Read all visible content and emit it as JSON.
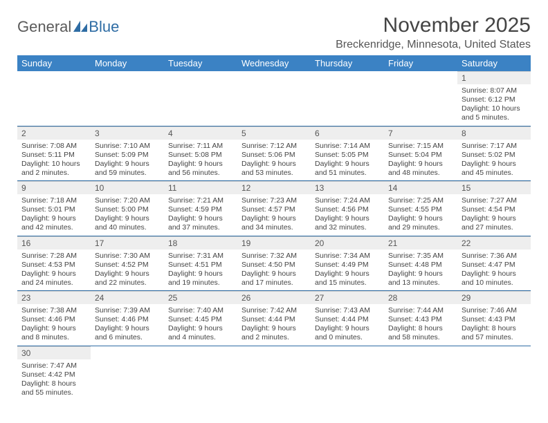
{
  "logo": {
    "word1": "General",
    "word2": "Blue"
  },
  "title": "November 2025",
  "location": "Breckenridge, Minnesota, United States",
  "colors": {
    "header_bg": "#3b82c4",
    "header_text": "#ffffff",
    "daynum_bg": "#eeeeee",
    "row_border": "#2e6ca4",
    "text": "#444444",
    "logo_gray": "#5a5a5a",
    "logo_blue": "#2e6ca4"
  },
  "weekdays": [
    "Sunday",
    "Monday",
    "Tuesday",
    "Wednesday",
    "Thursday",
    "Friday",
    "Saturday"
  ],
  "weeks": [
    [
      null,
      null,
      null,
      null,
      null,
      null,
      {
        "n": "1",
        "sr": "Sunrise: 8:07 AM",
        "ss": "Sunset: 6:12 PM",
        "d1": "Daylight: 10 hours",
        "d2": "and 5 minutes."
      }
    ],
    [
      {
        "n": "2",
        "sr": "Sunrise: 7:08 AM",
        "ss": "Sunset: 5:11 PM",
        "d1": "Daylight: 10 hours",
        "d2": "and 2 minutes."
      },
      {
        "n": "3",
        "sr": "Sunrise: 7:10 AM",
        "ss": "Sunset: 5:09 PM",
        "d1": "Daylight: 9 hours",
        "d2": "and 59 minutes."
      },
      {
        "n": "4",
        "sr": "Sunrise: 7:11 AM",
        "ss": "Sunset: 5:08 PM",
        "d1": "Daylight: 9 hours",
        "d2": "and 56 minutes."
      },
      {
        "n": "5",
        "sr": "Sunrise: 7:12 AM",
        "ss": "Sunset: 5:06 PM",
        "d1": "Daylight: 9 hours",
        "d2": "and 53 minutes."
      },
      {
        "n": "6",
        "sr": "Sunrise: 7:14 AM",
        "ss": "Sunset: 5:05 PM",
        "d1": "Daylight: 9 hours",
        "d2": "and 51 minutes."
      },
      {
        "n": "7",
        "sr": "Sunrise: 7:15 AM",
        "ss": "Sunset: 5:04 PM",
        "d1": "Daylight: 9 hours",
        "d2": "and 48 minutes."
      },
      {
        "n": "8",
        "sr": "Sunrise: 7:17 AM",
        "ss": "Sunset: 5:02 PM",
        "d1": "Daylight: 9 hours",
        "d2": "and 45 minutes."
      }
    ],
    [
      {
        "n": "9",
        "sr": "Sunrise: 7:18 AM",
        "ss": "Sunset: 5:01 PM",
        "d1": "Daylight: 9 hours",
        "d2": "and 42 minutes."
      },
      {
        "n": "10",
        "sr": "Sunrise: 7:20 AM",
        "ss": "Sunset: 5:00 PM",
        "d1": "Daylight: 9 hours",
        "d2": "and 40 minutes."
      },
      {
        "n": "11",
        "sr": "Sunrise: 7:21 AM",
        "ss": "Sunset: 4:59 PM",
        "d1": "Daylight: 9 hours",
        "d2": "and 37 minutes."
      },
      {
        "n": "12",
        "sr": "Sunrise: 7:23 AM",
        "ss": "Sunset: 4:57 PM",
        "d1": "Daylight: 9 hours",
        "d2": "and 34 minutes."
      },
      {
        "n": "13",
        "sr": "Sunrise: 7:24 AM",
        "ss": "Sunset: 4:56 PM",
        "d1": "Daylight: 9 hours",
        "d2": "and 32 minutes."
      },
      {
        "n": "14",
        "sr": "Sunrise: 7:25 AM",
        "ss": "Sunset: 4:55 PM",
        "d1": "Daylight: 9 hours",
        "d2": "and 29 minutes."
      },
      {
        "n": "15",
        "sr": "Sunrise: 7:27 AM",
        "ss": "Sunset: 4:54 PM",
        "d1": "Daylight: 9 hours",
        "d2": "and 27 minutes."
      }
    ],
    [
      {
        "n": "16",
        "sr": "Sunrise: 7:28 AM",
        "ss": "Sunset: 4:53 PM",
        "d1": "Daylight: 9 hours",
        "d2": "and 24 minutes."
      },
      {
        "n": "17",
        "sr": "Sunrise: 7:30 AM",
        "ss": "Sunset: 4:52 PM",
        "d1": "Daylight: 9 hours",
        "d2": "and 22 minutes."
      },
      {
        "n": "18",
        "sr": "Sunrise: 7:31 AM",
        "ss": "Sunset: 4:51 PM",
        "d1": "Daylight: 9 hours",
        "d2": "and 19 minutes."
      },
      {
        "n": "19",
        "sr": "Sunrise: 7:32 AM",
        "ss": "Sunset: 4:50 PM",
        "d1": "Daylight: 9 hours",
        "d2": "and 17 minutes."
      },
      {
        "n": "20",
        "sr": "Sunrise: 7:34 AM",
        "ss": "Sunset: 4:49 PM",
        "d1": "Daylight: 9 hours",
        "d2": "and 15 minutes."
      },
      {
        "n": "21",
        "sr": "Sunrise: 7:35 AM",
        "ss": "Sunset: 4:48 PM",
        "d1": "Daylight: 9 hours",
        "d2": "and 13 minutes."
      },
      {
        "n": "22",
        "sr": "Sunrise: 7:36 AM",
        "ss": "Sunset: 4:47 PM",
        "d1": "Daylight: 9 hours",
        "d2": "and 10 minutes."
      }
    ],
    [
      {
        "n": "23",
        "sr": "Sunrise: 7:38 AM",
        "ss": "Sunset: 4:46 PM",
        "d1": "Daylight: 9 hours",
        "d2": "and 8 minutes."
      },
      {
        "n": "24",
        "sr": "Sunrise: 7:39 AM",
        "ss": "Sunset: 4:46 PM",
        "d1": "Daylight: 9 hours",
        "d2": "and 6 minutes."
      },
      {
        "n": "25",
        "sr": "Sunrise: 7:40 AM",
        "ss": "Sunset: 4:45 PM",
        "d1": "Daylight: 9 hours",
        "d2": "and 4 minutes."
      },
      {
        "n": "26",
        "sr": "Sunrise: 7:42 AM",
        "ss": "Sunset: 4:44 PM",
        "d1": "Daylight: 9 hours",
        "d2": "and 2 minutes."
      },
      {
        "n": "27",
        "sr": "Sunrise: 7:43 AM",
        "ss": "Sunset: 4:44 PM",
        "d1": "Daylight: 9 hours",
        "d2": "and 0 minutes."
      },
      {
        "n": "28",
        "sr": "Sunrise: 7:44 AM",
        "ss": "Sunset: 4:43 PM",
        "d1": "Daylight: 8 hours",
        "d2": "and 58 minutes."
      },
      {
        "n": "29",
        "sr": "Sunrise: 7:46 AM",
        "ss": "Sunset: 4:43 PM",
        "d1": "Daylight: 8 hours",
        "d2": "and 57 minutes."
      }
    ],
    [
      {
        "n": "30",
        "sr": "Sunrise: 7:47 AM",
        "ss": "Sunset: 4:42 PM",
        "d1": "Daylight: 8 hours",
        "d2": "and 55 minutes."
      },
      null,
      null,
      null,
      null,
      null,
      null
    ]
  ]
}
